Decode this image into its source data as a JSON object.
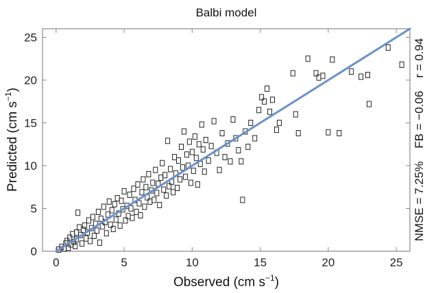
{
  "chart_data": {
    "type": "scatter",
    "title": "Balbi model",
    "xlabel": {
      "main": "Observed (cm s",
      "sup": "−1",
      "end": ")"
    },
    "ylabel": {
      "main": "Predicted (cm s",
      "sup": "−1",
      "end": ")"
    },
    "xlim": [
      -1,
      26
    ],
    "ylim": [
      0,
      26
    ],
    "xticks": [
      0,
      5,
      10,
      15,
      20,
      25
    ],
    "yticks": [
      0,
      5,
      10,
      15,
      20,
      25
    ],
    "stats_text": "NMSE = 7.25%    FB = −0.06    r = 0.94",
    "colors": {
      "fit_line": "#6b8fc9",
      "markers": "#222222",
      "frame": "#888888"
    },
    "fit_line": {
      "x": [
        0,
        26
      ],
      "y": [
        -0.3,
        26.2
      ]
    },
    "series": [
      {
        "marker": "open-square",
        "points": [
          [
            0.2,
            0.2
          ],
          [
            0.4,
            0.5
          ],
          [
            0.6,
            0.3
          ],
          [
            0.7,
            0.9
          ],
          [
            0.8,
            1.2
          ],
          [
            0.9,
            0.4
          ],
          [
            1.0,
            1.6
          ],
          [
            1.1,
            0.8
          ],
          [
            1.2,
            2.0
          ],
          [
            1.3,
            1.1
          ],
          [
            1.4,
            0.6
          ],
          [
            1.5,
            2.2
          ],
          [
            1.5,
            1.4
          ],
          [
            1.6,
            4.5
          ],
          [
            1.7,
            2.8
          ],
          [
            1.8,
            1.9
          ],
          [
            1.9,
            0.9
          ],
          [
            2.0,
            2.5
          ],
          [
            2.1,
            3.0
          ],
          [
            2.2,
            1.5
          ],
          [
            2.3,
            2.2
          ],
          [
            2.4,
            3.6
          ],
          [
            2.5,
            1.2
          ],
          [
            2.6,
            2.7
          ],
          [
            2.7,
            4.0
          ],
          [
            2.8,
            1.8
          ],
          [
            2.9,
            3.2
          ],
          [
            3.0,
            2.4
          ],
          [
            3.1,
            4.6
          ],
          [
            3.2,
            1.0
          ],
          [
            3.3,
            3.8
          ],
          [
            3.4,
            2.9
          ],
          [
            3.5,
            5.2
          ],
          [
            3.6,
            3.4
          ],
          [
            3.7,
            2.1
          ],
          [
            3.8,
            4.3
          ],
          [
            3.9,
            5.8
          ],
          [
            4.0,
            3.1
          ],
          [
            4.1,
            4.8
          ],
          [
            4.2,
            2.6
          ],
          [
            4.3,
            5.5
          ],
          [
            4.4,
            3.7
          ],
          [
            4.5,
            6.2
          ],
          [
            4.6,
            4.4
          ],
          [
            4.7,
            3.0
          ],
          [
            4.8,
            5.9
          ],
          [
            4.9,
            4.9
          ],
          [
            5.0,
            7.0
          ],
          [
            5.1,
            3.6
          ],
          [
            5.2,
            5.3
          ],
          [
            5.3,
            4.1
          ],
          [
            5.4,
            6.6
          ],
          [
            5.5,
            5.0
          ],
          [
            5.6,
            3.9
          ],
          [
            5.7,
            7.3
          ],
          [
            5.8,
            6.0
          ],
          [
            5.9,
            4.6
          ],
          [
            6.0,
            7.8
          ],
          [
            6.1,
            5.6
          ],
          [
            6.2,
            4.2
          ],
          [
            6.3,
            6.9
          ],
          [
            6.4,
            8.4
          ],
          [
            6.5,
            5.2
          ],
          [
            6.6,
            7.5
          ],
          [
            6.7,
            6.3
          ],
          [
            6.8,
            9.0
          ],
          [
            6.9,
            5.8
          ],
          [
            7.0,
            7.1
          ],
          [
            7.1,
            8.0
          ],
          [
            7.2,
            6.0
          ],
          [
            7.3,
            9.5
          ],
          [
            7.4,
            6.8
          ],
          [
            7.5,
            7.9
          ],
          [
            7.6,
            5.4
          ],
          [
            7.7,
            8.6
          ],
          [
            7.8,
            10.3
          ],
          [
            7.9,
            7.2
          ],
          [
            8.0,
            8.9
          ],
          [
            8.1,
            6.5
          ],
          [
            8.2,
            12.9
          ],
          [
            8.3,
            7.6
          ],
          [
            8.4,
            9.6
          ],
          [
            8.5,
            8.1
          ],
          [
            8.6,
            6.9
          ],
          [
            8.7,
            11.0
          ],
          [
            8.8,
            9.1
          ],
          [
            8.9,
            7.4
          ],
          [
            9.0,
            10.6
          ],
          [
            9.1,
            8.4
          ],
          [
            9.2,
            12.2
          ],
          [
            9.3,
            9.8
          ],
          [
            9.4,
            14.0
          ],
          [
            9.5,
            8.7
          ],
          [
            9.6,
            11.3
          ],
          [
            9.7,
            10.0
          ],
          [
            9.8,
            12.8
          ],
          [
            9.9,
            8.0
          ],
          [
            10.0,
            11.6
          ],
          [
            10.1,
            9.4
          ],
          [
            10.2,
            13.4
          ],
          [
            10.3,
            10.9
          ],
          [
            10.4,
            7.8
          ],
          [
            10.5,
            12.5
          ],
          [
            10.6,
            10.2
          ],
          [
            10.7,
            14.8
          ],
          [
            10.8,
            11.9
          ],
          [
            10.9,
            9.3
          ],
          [
            11.0,
            13.0
          ],
          [
            11.2,
            10.6
          ],
          [
            11.4,
            12.3
          ],
          [
            11.6,
            15.2
          ],
          [
            11.8,
            11.5
          ],
          [
            12.0,
            9.5
          ],
          [
            12.2,
            13.8
          ],
          [
            12.4,
            11.0
          ],
          [
            12.6,
            12.6
          ],
          [
            12.8,
            10.5
          ],
          [
            13.0,
            15.4
          ],
          [
            13.2,
            13.2
          ],
          [
            13.4,
            11.8
          ],
          [
            13.6,
            10.5
          ],
          [
            13.7,
            6.0
          ],
          [
            13.9,
            14.0
          ],
          [
            14.1,
            12.2
          ],
          [
            14.3,
            15.0
          ],
          [
            14.6,
            13.2
          ],
          [
            14.9,
            16.5
          ],
          [
            15.1,
            18.0
          ],
          [
            15.3,
            17.5
          ],
          [
            15.5,
            19.0
          ],
          [
            15.7,
            16.3
          ],
          [
            15.9,
            17.7
          ],
          [
            16.2,
            14.2
          ],
          [
            16.4,
            15.0
          ],
          [
            17.4,
            20.8
          ],
          [
            17.6,
            16.0
          ],
          [
            17.8,
            13.8
          ],
          [
            18.5,
            22.5
          ],
          [
            19.1,
            20.8
          ],
          [
            19.3,
            20.3
          ],
          [
            19.6,
            20.5
          ],
          [
            20.0,
            13.9
          ],
          [
            20.3,
            22.4
          ],
          [
            20.8,
            13.8
          ],
          [
            21.7,
            21.0
          ],
          [
            22.4,
            20.4
          ],
          [
            22.9,
            20.6
          ],
          [
            23.0,
            17.2
          ],
          [
            24.4,
            23.8
          ],
          [
            25.4,
            21.8
          ]
        ]
      }
    ]
  }
}
